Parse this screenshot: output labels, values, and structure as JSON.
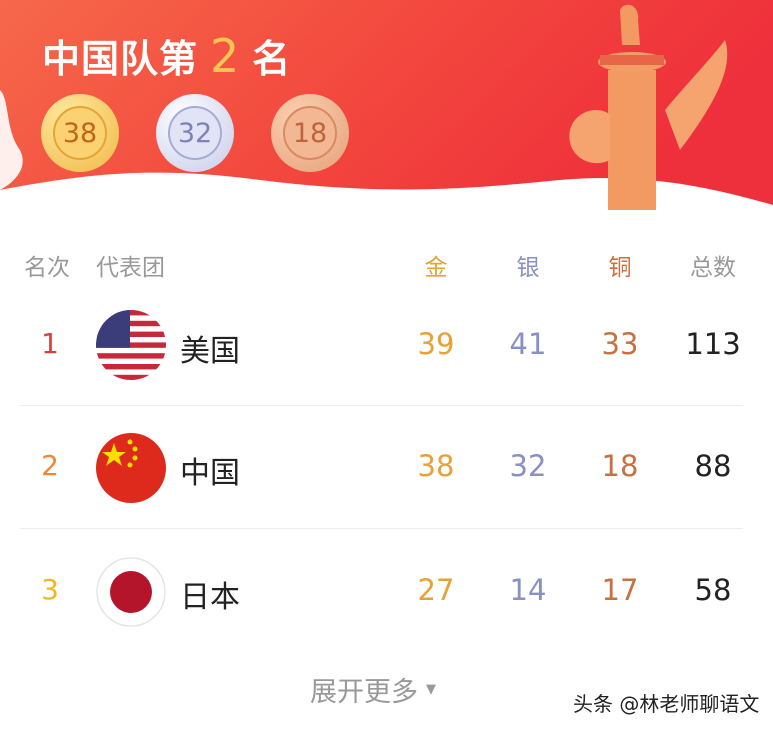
{
  "banner": {
    "title_prefix": "中国队第",
    "rank": "2",
    "title_suffix": "名",
    "medals": {
      "gold": "38",
      "silver": "32",
      "bronze": "18"
    }
  },
  "table": {
    "headers": {
      "rank": "名次",
      "team": "代表团",
      "gold": "金",
      "silver": "银",
      "bronze": "铜",
      "total": "总数"
    },
    "rows": [
      {
        "rank": "1",
        "team": "美国",
        "flag": "usa-flag-icon",
        "gold": "39",
        "silver": "41",
        "bronze": "33",
        "total": "113"
      },
      {
        "rank": "2",
        "team": "中国",
        "flag": "china-flag-icon",
        "gold": "38",
        "silver": "32",
        "bronze": "18",
        "total": "88"
      },
      {
        "rank": "3",
        "team": "日本",
        "flag": "japan-flag-icon",
        "gold": "27",
        "silver": "14",
        "bronze": "17",
        "total": "58"
      }
    ]
  },
  "expand_label": "展开更多",
  "watermark": "头条 @林老师聊语文",
  "colors": {
    "gold": "#e8a137",
    "silver": "#8990c4",
    "bronze": "#c8703f",
    "rank1": "#d9423a",
    "rank2": "#ea8a32",
    "rank3": "#f2b91f",
    "banner": "#f0453a"
  }
}
